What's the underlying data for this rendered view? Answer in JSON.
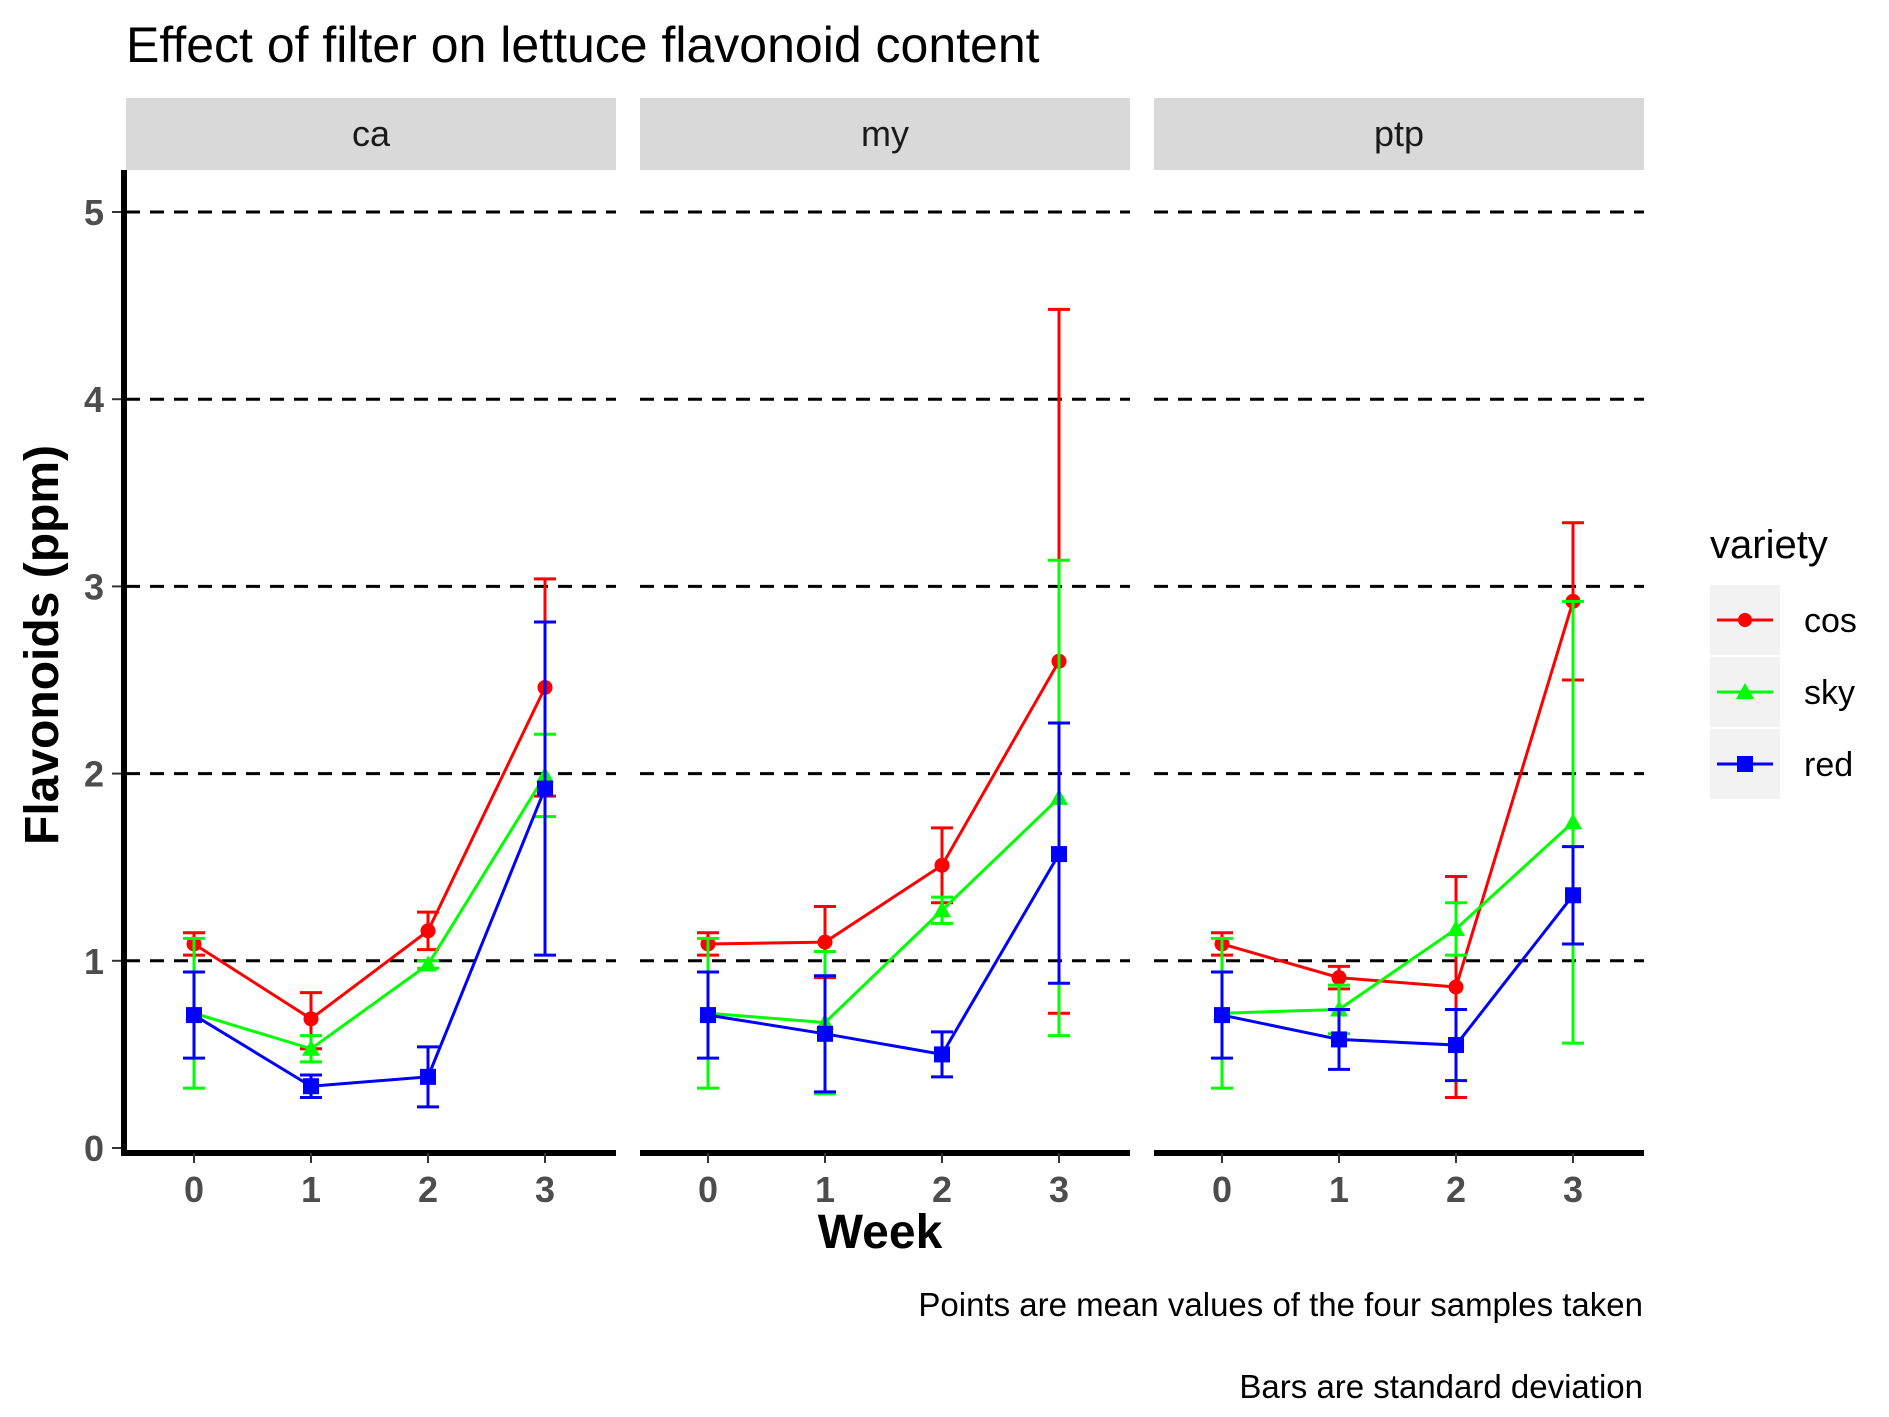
{
  "chart_data": {
    "type": "line",
    "title": "Effect of filter on lettuce flavonoid content",
    "xlabel": "Week",
    "ylabel": "Flavonoids (ppm)",
    "x": [
      "0",
      "1",
      "2",
      "3"
    ],
    "y_ticks": [
      "0",
      "1",
      "2",
      "3",
      "4",
      "5"
    ],
    "ylim": [
      0,
      5.2
    ],
    "grid": "dashed horizontal at 1, 2, 3, 5",
    "legend": {
      "title": "variety",
      "position": "right",
      "entries": [
        "cos",
        "sky",
        "red"
      ]
    },
    "captions": [
      "Points are mean values of the four samples taken",
      "Bars are standard deviation"
    ],
    "colors": {
      "cos": "#ff0000",
      "sky": "#00ff00",
      "red": "#0000ff"
    },
    "markers": {
      "cos": "circle",
      "sky": "triangle",
      "red": "square"
    },
    "panels": [
      {
        "label": "ca",
        "series": [
          {
            "name": "cos",
            "values": [
              1.09,
              0.69,
              1.16,
              2.46
            ],
            "err_low": [
              1.03,
              0.53,
              1.06,
              1.88
            ],
            "err_high": [
              1.15,
              0.83,
              1.26,
              3.04
            ]
          },
          {
            "name": "sky",
            "values": [
              0.72,
              0.53,
              0.98,
              1.99
            ],
            "err_low": [
              0.32,
              0.46,
              0.96,
              1.77
            ],
            "err_high": [
              1.12,
              0.6,
              1.0,
              2.21
            ]
          },
          {
            "name": "red",
            "values": [
              0.71,
              0.33,
              0.38,
              1.92
            ],
            "err_low": [
              0.48,
              0.27,
              0.22,
              1.03
            ],
            "err_high": [
              0.94,
              0.39,
              0.54,
              2.81
            ]
          }
        ]
      },
      {
        "label": "my",
        "series": [
          {
            "name": "cos",
            "values": [
              1.09,
              1.1,
              1.51,
              2.6
            ],
            "err_low": [
              1.03,
              0.91,
              1.31,
              0.72
            ],
            "err_high": [
              1.15,
              1.29,
              1.71,
              4.48
            ]
          },
          {
            "name": "sky",
            "values": [
              0.72,
              0.67,
              1.27,
              1.87
            ],
            "err_low": [
              0.32,
              0.29,
              1.2,
              0.6
            ],
            "err_high": [
              1.12,
              1.05,
              1.34,
              3.14
            ]
          },
          {
            "name": "red",
            "values": [
              0.71,
              0.61,
              0.5,
              1.57
            ],
            "err_low": [
              0.48,
              0.3,
              0.38,
              0.88
            ],
            "err_high": [
              0.94,
              0.92,
              0.62,
              2.27
            ]
          }
        ]
      },
      {
        "label": "ptp",
        "series": [
          {
            "name": "cos",
            "values": [
              1.09,
              0.91,
              0.86,
              2.92
            ],
            "err_low": [
              1.03,
              0.85,
              0.27,
              2.5
            ],
            "err_high": [
              1.15,
              0.97,
              1.45,
              3.34
            ]
          },
          {
            "name": "sky",
            "values": [
              0.72,
              0.74,
              1.17,
              1.74
            ],
            "err_low": [
              0.32,
              0.61,
              1.03,
              0.56
            ],
            "err_high": [
              1.12,
              0.87,
              1.31,
              2.92
            ]
          },
          {
            "name": "red",
            "values": [
              0.71,
              0.58,
              0.55,
              1.35
            ],
            "err_low": [
              0.48,
              0.42,
              0.36,
              1.09
            ],
            "err_high": [
              0.94,
              0.74,
              0.74,
              1.61
            ]
          }
        ]
      }
    ]
  }
}
